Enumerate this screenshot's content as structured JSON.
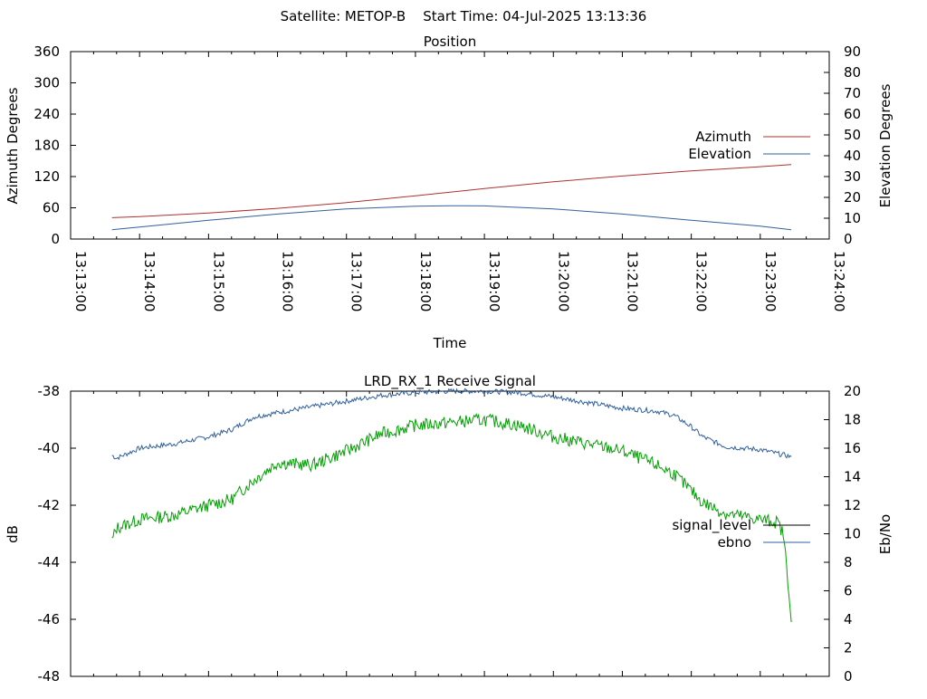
{
  "figure_title": "Satellite: METOP-B    Start Time: 04-Jul-2025 13:13:36",
  "chart_data": [
    {
      "type": "line",
      "title": "Position",
      "xlabel": "Time",
      "ylabel": "Azimuth Degrees",
      "y2label": "Elevation Degrees",
      "x_ticks": [
        "13:13:00",
        "13:14:00",
        "13:15:00",
        "13:16:00",
        "13:17:00",
        "13:18:00",
        "13:19:00",
        "13:20:00",
        "13:21:00",
        "13:22:00",
        "13:23:00",
        "13:24:00"
      ],
      "xlim": [
        "13:13:00",
        "13:24:00"
      ],
      "ylim": [
        0,
        360
      ],
      "y_ticks": [
        0,
        60,
        120,
        180,
        240,
        300,
        360
      ],
      "y2lim": [
        0,
        90
      ],
      "y2_ticks": [
        0,
        10,
        20,
        30,
        40,
        50,
        60,
        70,
        80,
        90
      ],
      "legend_position": "right",
      "series": [
        {
          "name": "Azimuth",
          "axis": "y",
          "color": "#b03030",
          "x": [
            "13:13:36",
            "13:14:00",
            "13:15:00",
            "13:16:00",
            "13:17:00",
            "13:18:00",
            "13:19:00",
            "13:20:00",
            "13:21:00",
            "13:22:00",
            "13:23:00",
            "13:23:27"
          ],
          "values": [
            41,
            43,
            50,
            59,
            70,
            83,
            97,
            110,
            121,
            131,
            139,
            143
          ]
        },
        {
          "name": "Elevation",
          "axis": "y2",
          "color": "#3060a0",
          "x": [
            "13:13:36",
            "13:14:00",
            "13:15:00",
            "13:16:00",
            "13:17:00",
            "13:18:00",
            "13:18:30",
            "13:19:00",
            "13:20:00",
            "13:21:00",
            "13:22:00",
            "13:23:00",
            "13:23:27"
          ],
          "values": [
            4.5,
            5.8,
            9,
            12,
            14.5,
            15.8,
            16,
            15.9,
            14.5,
            12,
            9,
            6.2,
            4.5
          ]
        }
      ]
    },
    {
      "type": "line",
      "title": "LRD_RX_1 Receive Signal",
      "xlabel": "",
      "ylabel": "dB",
      "y2label": "Eb/No",
      "xlim": [
        "13:13:00",
        "13:24:00"
      ],
      "ylim": [
        -48,
        -38
      ],
      "y_ticks": [
        -48,
        -46,
        -44,
        -42,
        -40,
        -38
      ],
      "y2lim": [
        0,
        20
      ],
      "y2_ticks": [
        0,
        2,
        4,
        6,
        8,
        10,
        12,
        14,
        16,
        18,
        20
      ],
      "legend_position": "right",
      "series": [
        {
          "name": "signal_level",
          "axis": "y",
          "color": "#000000",
          "x": [],
          "values": []
        },
        {
          "name": "ebno",
          "axis": "y2",
          "color": "#3060a0",
          "x": [
            "13:13:36",
            "13:13:40",
            "13:14:00",
            "13:14:30",
            "13:15:00",
            "13:15:20",
            "13:15:40",
            "13:16:00",
            "13:16:30",
            "13:17:00",
            "13:17:30",
            "13:18:00",
            "13:18:30",
            "13:19:00",
            "13:19:30",
            "13:20:00",
            "13:20:30",
            "13:21:00",
            "13:21:30",
            "13:21:45",
            "13:22:00",
            "13:22:10",
            "13:22:30",
            "13:23:00",
            "13:23:27"
          ],
          "values": [
            15.5,
            15.3,
            16.0,
            16.3,
            16.8,
            17.3,
            18.2,
            18.5,
            18.9,
            19.3,
            19.7,
            19.9,
            20.0,
            20.0,
            19.9,
            19.6,
            19.2,
            18.8,
            18.6,
            18.3,
            17.5,
            16.8,
            16.1,
            15.9,
            15.4
          ]
        },
        {
          "name": "",
          "axis": "y2",
          "color": "#00a000",
          "x": [
            "13:13:36",
            "13:13:40",
            "13:14:00",
            "13:14:30",
            "13:15:00",
            "13:15:20",
            "13:15:40",
            "13:16:00",
            "13:16:30",
            "13:17:00",
            "13:17:30",
            "13:18:00",
            "13:18:30",
            "13:19:00",
            "13:19:30",
            "13:20:00",
            "13:20:30",
            "13:21:00",
            "13:21:30",
            "13:21:45",
            "13:22:00",
            "13:22:10",
            "13:22:30",
            "13:23:00",
            "13:23:15",
            "13:23:20",
            "13:23:25",
            "13:23:27"
          ],
          "values": [
            9.5,
            10.4,
            11.0,
            11.3,
            12.0,
            12.4,
            13.8,
            15.0,
            14.8,
            15.8,
            17.0,
            17.6,
            17.8,
            18.0,
            17.6,
            16.8,
            16.3,
            15.8,
            14.8,
            14.2,
            13.0,
            12.2,
            11.4,
            11.0,
            10.8,
            10.0,
            6.0,
            3.8
          ]
        }
      ]
    }
  ]
}
